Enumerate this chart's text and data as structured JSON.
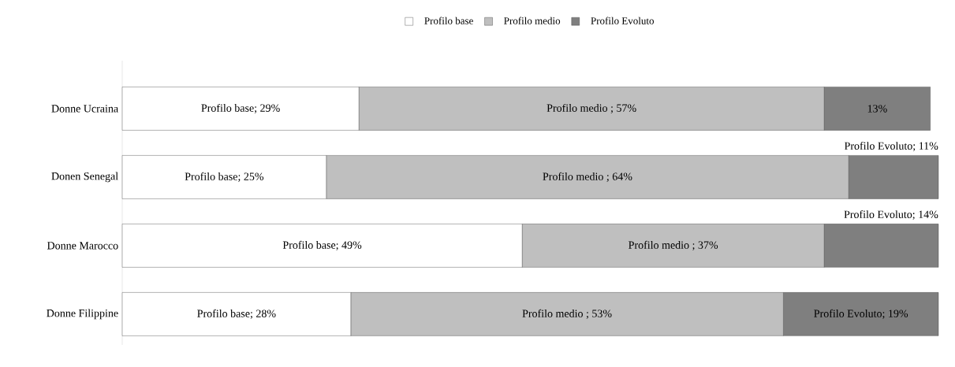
{
  "chart_data": {
    "type": "bar",
    "orientation": "horizontal",
    "stacked": true,
    "legend": "top",
    "categories": [
      "Donne Ucraina",
      "Donen Senegal",
      "Donne Marocco",
      "Donne Filippine"
    ],
    "series": [
      {
        "name": "Profilo base",
        "color": "#ffffff",
        "values": [
          29,
          25,
          49,
          28
        ],
        "value_labels": [
          "Profilo base; 29%",
          "Profilo base; 25%",
          "Profilo base; 49%",
          "Profilo base; 28%"
        ]
      },
      {
        "name": "Profilo medio",
        "color": "#bfbfbf",
        "values": [
          57,
          64,
          37,
          53
        ],
        "value_labels": [
          "Profilo medio ; 57%",
          "Profilo medio ; 64%",
          "Profilo medio ; 37%",
          "Profilo medio ; 53%"
        ]
      },
      {
        "name": "Profilo Evoluto",
        "color": "#7f7f7f",
        "values": [
          13,
          11,
          14,
          19
        ],
        "value_labels": [
          "13%",
          "Profilo Evoluto; 11%",
          "Profilo Evoluto; 14%",
          "Profilo Evoluto; 19%"
        ]
      }
    ]
  }
}
